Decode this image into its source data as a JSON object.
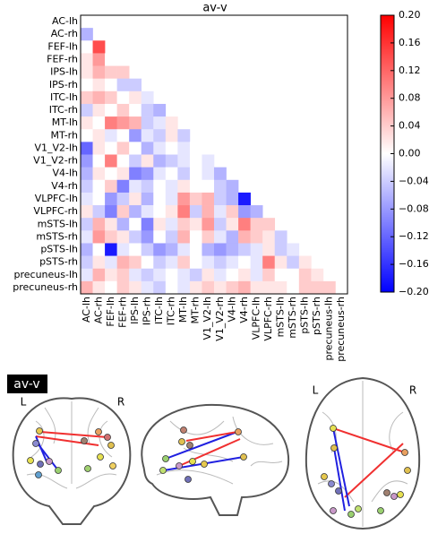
{
  "chart_data": {
    "type": "heatmap",
    "title": "av-v",
    "labels": [
      "AC-lh",
      "AC-rh",
      "FEF-lh",
      "FEF-rh",
      "IPS-lh",
      "IPS-rh",
      "ITC-lh",
      "ITC-rh",
      "MT-lh",
      "MT-rh",
      "V1_V2-lh",
      "V1_V2-rh",
      "V4-lh",
      "V4-rh",
      "VLPFC-lh",
      "VLPFC-rh",
      "mSTS-lh",
      "mSTS-rh",
      "pSTS-lh",
      "pSTS-rh",
      "precuneus-lh",
      "precuneus-rh"
    ],
    "colormap": "bwr",
    "zlim": [
      -0.2,
      0.2
    ],
    "zticks": [
      {
        "value": 0.2,
        "label": "0.20"
      },
      {
        "value": 0.16,
        "label": "0.16"
      },
      {
        "value": 0.12,
        "label": "0.12"
      },
      {
        "value": 0.08,
        "label": "0.08"
      },
      {
        "value": 0.04,
        "label": "0.04"
      },
      {
        "value": 0,
        "label": "0.00"
      },
      {
        "value": -0.04,
        "label": "−0.04"
      },
      {
        "value": -0.08,
        "label": "−0.08"
      },
      {
        "value": -0.12,
        "label": "−0.12"
      },
      {
        "value": -0.16,
        "label": "−0.16"
      },
      {
        "value": -0.2,
        "label": "−0.20"
      }
    ],
    "z": [
      [
        null,
        null,
        null,
        null,
        null,
        null,
        null,
        null,
        null,
        null,
        null,
        null,
        null,
        null,
        null,
        null,
        null,
        null,
        null,
        null,
        null,
        null
      ],
      [
        -0.06,
        null,
        null,
        null,
        null,
        null,
        null,
        null,
        null,
        null,
        null,
        null,
        null,
        null,
        null,
        null,
        null,
        null,
        null,
        null,
        null,
        null
      ],
      [
        0.0,
        0.14,
        null,
        null,
        null,
        null,
        null,
        null,
        null,
        null,
        null,
        null,
        null,
        null,
        null,
        null,
        null,
        null,
        null,
        null,
        null,
        null
      ],
      [
        0.02,
        0.08,
        0.0,
        null,
        null,
        null,
        null,
        null,
        null,
        null,
        null,
        null,
        null,
        null,
        null,
        null,
        null,
        null,
        null,
        null,
        null,
        null
      ],
      [
        0.02,
        0.06,
        0.04,
        0.04,
        null,
        null,
        null,
        null,
        null,
        null,
        null,
        null,
        null,
        null,
        null,
        null,
        null,
        null,
        null,
        null,
        null,
        null
      ],
      [
        0.0,
        0.02,
        0.0,
        -0.04,
        -0.04,
        null,
        null,
        null,
        null,
        null,
        null,
        null,
        null,
        null,
        null,
        null,
        null,
        null,
        null,
        null,
        null,
        null
      ],
      [
        0.04,
        0.06,
        0.04,
        0.0,
        0.02,
        -0.02,
        null,
        null,
        null,
        null,
        null,
        null,
        null,
        null,
        null,
        null,
        null,
        null,
        null,
        null,
        null,
        null
      ],
      [
        -0.04,
        0.02,
        0.0,
        0.04,
        0.0,
        -0.04,
        -0.06,
        null,
        null,
        null,
        null,
        null,
        null,
        null,
        null,
        null,
        null,
        null,
        null,
        null,
        null,
        null
      ],
      [
        0.02,
        0.0,
        0.1,
        0.08,
        0.06,
        -0.04,
        -0.02,
        0.02,
        null,
        null,
        null,
        null,
        null,
        null,
        null,
        null,
        null,
        null,
        null,
        null,
        null,
        null
      ],
      [
        0.0,
        0.02,
        -0.02,
        0.0,
        -0.08,
        -0.02,
        -0.04,
        0.02,
        -0.04,
        null,
        null,
        null,
        null,
        null,
        null,
        null,
        null,
        null,
        null,
        null,
        null,
        null
      ],
      [
        -0.12,
        0.02,
        0.0,
        0.04,
        0.0,
        -0.06,
        -0.02,
        0.0,
        -0.02,
        0.0,
        null,
        null,
        null,
        null,
        null,
        null,
        null,
        null,
        null,
        null,
        null,
        null
      ],
      [
        -0.08,
        0.0,
        0.1,
        0.0,
        -0.04,
        0.02,
        -0.06,
        -0.04,
        -0.02,
        0.0,
        -0.02,
        null,
        null,
        null,
        null,
        null,
        null,
        null,
        null,
        null,
        null,
        null
      ],
      [
        -0.06,
        0.02,
        0.0,
        0.02,
        -0.1,
        -0.08,
        -0.02,
        0.0,
        -0.04,
        0.0,
        -0.02,
        -0.06,
        null,
        null,
        null,
        null,
        null,
        null,
        null,
        null,
        null,
        null
      ],
      [
        -0.04,
        0.0,
        0.04,
        -0.1,
        -0.02,
        -0.04,
        0.0,
        -0.02,
        0.02,
        0.0,
        0.0,
        -0.04,
        -0.06,
        null,
        null,
        null,
        null,
        null,
        null,
        null,
        null,
        null
      ],
      [
        -0.02,
        0.0,
        -0.08,
        -0.04,
        0.02,
        -0.06,
        0.0,
        -0.02,
        0.08,
        0.04,
        0.06,
        -0.04,
        -0.06,
        -0.18,
        null,
        null,
        null,
        null,
        null,
        null,
        null,
        null
      ],
      [
        0.02,
        -0.04,
        -0.1,
        0.04,
        -0.06,
        -0.02,
        0.0,
        0.02,
        0.1,
        -0.04,
        0.06,
        -0.02,
        0.04,
        -0.08,
        -0.06,
        null,
        null,
        null,
        null,
        null,
        null,
        null
      ],
      [
        -0.04,
        0.06,
        0.02,
        -0.06,
        0.0,
        -0.1,
        0.02,
        -0.02,
        0.04,
        0.02,
        0.08,
        -0.04,
        0.02,
        0.1,
        0.04,
        0.04,
        null,
        null,
        null,
        null,
        null,
        null
      ],
      [
        -0.02,
        0.08,
        0.04,
        0.02,
        -0.04,
        -0.08,
        0.0,
        -0.04,
        0.06,
        0.0,
        0.04,
        -0.02,
        -0.06,
        0.06,
        0.04,
        0.02,
        -0.04,
        null,
        null,
        null,
        null,
        null
      ],
      [
        -0.06,
        0.0,
        -0.18,
        -0.02,
        0.0,
        -0.04,
        -0.08,
        -0.06,
        -0.02,
        0.0,
        -0.06,
        -0.08,
        -0.06,
        -0.04,
        -0.02,
        0.02,
        -0.04,
        -0.02,
        null,
        null,
        null,
        null
      ],
      [
        -0.04,
        0.02,
        -0.02,
        0.06,
        0.04,
        0.0,
        -0.04,
        -0.02,
        0.04,
        0.0,
        -0.02,
        -0.04,
        -0.02,
        0.0,
        -0.02,
        0.1,
        0.02,
        -0.04,
        0.02,
        null,
        null,
        null
      ],
      [
        -0.02,
        0.06,
        0.02,
        0.04,
        -0.02,
        -0.04,
        -0.02,
        0.0,
        -0.02,
        -0.04,
        0.02,
        -0.02,
        0.0,
        0.02,
        -0.02,
        0.04,
        0.0,
        0.0,
        0.04,
        0.02,
        null,
        null
      ],
      [
        0.06,
        0.02,
        0.0,
        0.04,
        0.02,
        -0.02,
        -0.04,
        0.0,
        -0.02,
        0.02,
        0.04,
        0.02,
        0.04,
        0.06,
        0.02,
        0.02,
        0.02,
        0.0,
        0.04,
        0.04,
        0.04,
        null
      ]
    ]
  },
  "connectome": {
    "title": "av-v",
    "coronal": {
      "left": "L",
      "right": "R"
    },
    "axial": {
      "left": "L",
      "right": "R"
    }
  }
}
